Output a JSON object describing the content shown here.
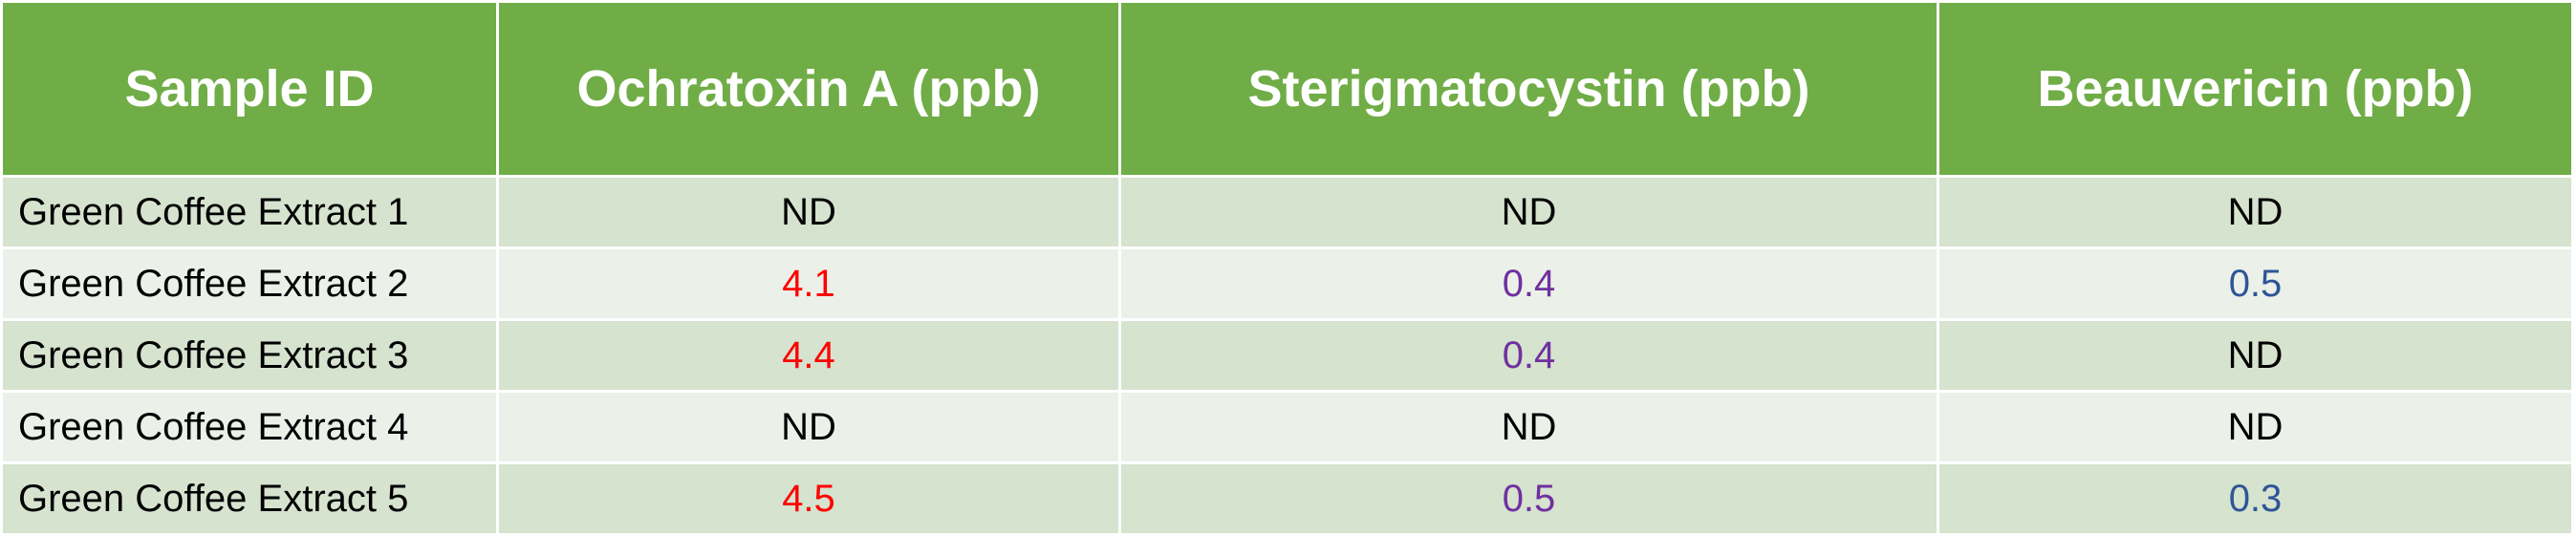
{
  "table": {
    "columns": [
      "Sample ID",
      "Ochratoxin A (ppb)",
      "Sterigmatocystin (ppb)",
      "Beauvericin (ppb)"
    ],
    "rows": [
      [
        "Green Coffee Extract 1",
        "ND",
        "ND",
        "ND"
      ],
      [
        "Green Coffee Extract 2",
        4.1,
        0.4,
        0.5
      ],
      [
        "Green Coffee Extract 3",
        4.4,
        0.4,
        "ND"
      ],
      [
        "Green Coffee Extract 4",
        "ND",
        "ND",
        "ND"
      ],
      [
        "Green Coffee Extract 5",
        4.5,
        0.5,
        0.3
      ]
    ]
  }
}
